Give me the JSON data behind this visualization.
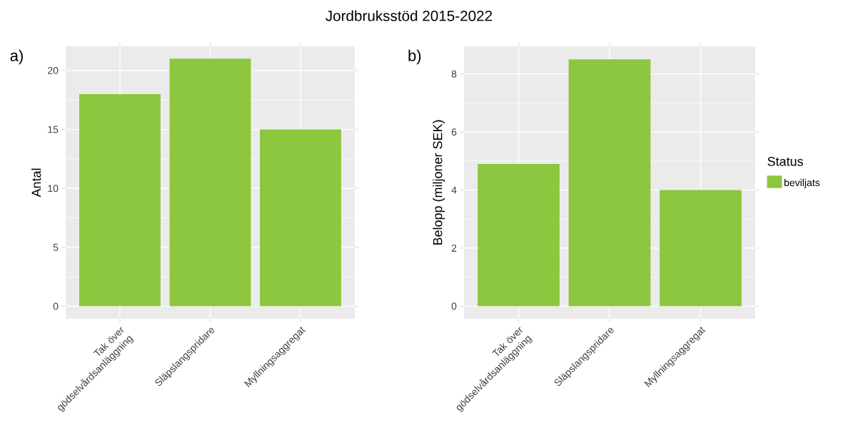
{
  "chart_data": [
    {
      "type": "bar",
      "title": "Jordbruksstöd 2015-2022",
      "annotations": [
        "a)"
      ],
      "ylabel": "Antal",
      "categories": [
        "Tak över gödselvårdsanläggning",
        "Släpslangspridare",
        "Myllningsaggregat"
      ],
      "series": [
        {
          "color": "#8dc63f",
          "values": [
            18,
            21,
            15
          ]
        }
      ],
      "ylim": [
        -1.05,
        22.05
      ],
      "yticks": [
        0,
        5,
        10,
        15,
        20
      ],
      "grid": true
    },
    {
      "type": "bar",
      "annotations": [
        "b)"
      ],
      "ylabel": "Belopp (miljoner SEK)",
      "legend_title": "Status",
      "categories": [
        "Tak över gödselvårdsanläggning",
        "Släpslangspridare",
        "Myllningsaggregat"
      ],
      "series": [
        {
          "name": "beviljats",
          "color": "#8dc63f",
          "values": [
            4.9,
            8.5,
            4.0
          ]
        }
      ],
      "ylim": [
        -0.43,
        8.95
      ],
      "yticks": [
        0,
        2,
        4,
        6,
        8
      ],
      "grid": true,
      "legend": "right"
    }
  ]
}
